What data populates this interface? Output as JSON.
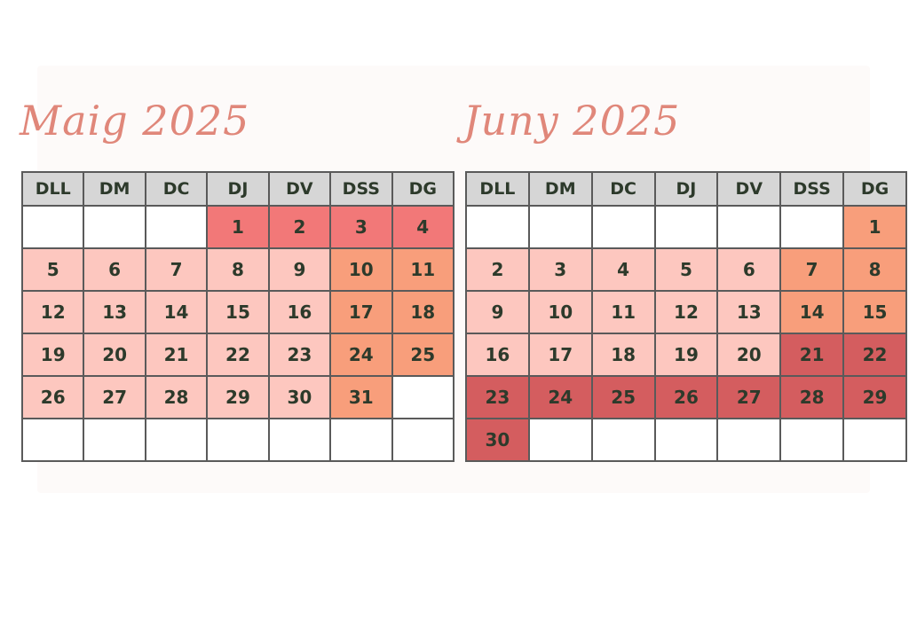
{
  "legend_colors": {
    "light": "#fdc7bf",
    "orange": "#f89e7b",
    "rose": "#f27878",
    "dark": "#d45d5f",
    "empty": "#ffffff",
    "header": "#d6d6d6",
    "title": "#e0877a"
  },
  "calendars": [
    {
      "title": "Maig 2025",
      "weekdays": [
        "DLL",
        "DM",
        "DC",
        "DJ",
        "DV",
        "DSS",
        "DG"
      ],
      "weeks": [
        [
          {
            "day": "",
            "color": "empty"
          },
          {
            "day": "",
            "color": "empty"
          },
          {
            "day": "",
            "color": "empty"
          },
          {
            "day": "1",
            "color": "rose"
          },
          {
            "day": "2",
            "color": "rose"
          },
          {
            "day": "3",
            "color": "rose"
          },
          {
            "day": "4",
            "color": "rose"
          }
        ],
        [
          {
            "day": "5",
            "color": "light"
          },
          {
            "day": "6",
            "color": "light"
          },
          {
            "day": "7",
            "color": "light"
          },
          {
            "day": "8",
            "color": "light"
          },
          {
            "day": "9",
            "color": "light"
          },
          {
            "day": "10",
            "color": "orange"
          },
          {
            "day": "11",
            "color": "orange"
          }
        ],
        [
          {
            "day": "12",
            "color": "light"
          },
          {
            "day": "13",
            "color": "light"
          },
          {
            "day": "14",
            "color": "light"
          },
          {
            "day": "15",
            "color": "light"
          },
          {
            "day": "16",
            "color": "light"
          },
          {
            "day": "17",
            "color": "orange"
          },
          {
            "day": "18",
            "color": "orange"
          }
        ],
        [
          {
            "day": "19",
            "color": "light"
          },
          {
            "day": "20",
            "color": "light"
          },
          {
            "day": "21",
            "color": "light"
          },
          {
            "day": "22",
            "color": "light"
          },
          {
            "day": "23",
            "color": "light"
          },
          {
            "day": "24",
            "color": "orange"
          },
          {
            "day": "25",
            "color": "orange"
          }
        ],
        [
          {
            "day": "26",
            "color": "light"
          },
          {
            "day": "27",
            "color": "light"
          },
          {
            "day": "28",
            "color": "light"
          },
          {
            "day": "29",
            "color": "light"
          },
          {
            "day": "30",
            "color": "light"
          },
          {
            "day": "31",
            "color": "orange"
          },
          {
            "day": "",
            "color": "empty"
          }
        ],
        [
          {
            "day": "",
            "color": "empty"
          },
          {
            "day": "",
            "color": "empty"
          },
          {
            "day": "",
            "color": "empty"
          },
          {
            "day": "",
            "color": "empty"
          },
          {
            "day": "",
            "color": "empty"
          },
          {
            "day": "",
            "color": "empty"
          },
          {
            "day": "",
            "color": "empty"
          }
        ]
      ]
    },
    {
      "title": "Juny 2025",
      "weekdays": [
        "DLL",
        "DM",
        "DC",
        "DJ",
        "DV",
        "DSS",
        "DG"
      ],
      "weeks": [
        [
          {
            "day": "",
            "color": "empty"
          },
          {
            "day": "",
            "color": "empty"
          },
          {
            "day": "",
            "color": "empty"
          },
          {
            "day": "",
            "color": "empty"
          },
          {
            "day": "",
            "color": "empty"
          },
          {
            "day": "",
            "color": "empty"
          },
          {
            "day": "1",
            "color": "orange"
          }
        ],
        [
          {
            "day": "2",
            "color": "light"
          },
          {
            "day": "3",
            "color": "light"
          },
          {
            "day": "4",
            "color": "light"
          },
          {
            "day": "5",
            "color": "light"
          },
          {
            "day": "6",
            "color": "light"
          },
          {
            "day": "7",
            "color": "orange"
          },
          {
            "day": "8",
            "color": "orange"
          }
        ],
        [
          {
            "day": "9",
            "color": "light"
          },
          {
            "day": "10",
            "color": "light"
          },
          {
            "day": "11",
            "color": "light"
          },
          {
            "day": "12",
            "color": "light"
          },
          {
            "day": "13",
            "color": "light"
          },
          {
            "day": "14",
            "color": "orange"
          },
          {
            "day": "15",
            "color": "orange"
          }
        ],
        [
          {
            "day": "16",
            "color": "light"
          },
          {
            "day": "17",
            "color": "light"
          },
          {
            "day": "18",
            "color": "light"
          },
          {
            "day": "19",
            "color": "light"
          },
          {
            "day": "20",
            "color": "light"
          },
          {
            "day": "21",
            "color": "dark"
          },
          {
            "day": "22",
            "color": "dark"
          }
        ],
        [
          {
            "day": "23",
            "color": "dark"
          },
          {
            "day": "24",
            "color": "dark"
          },
          {
            "day": "25",
            "color": "dark"
          },
          {
            "day": "26",
            "color": "dark"
          },
          {
            "day": "27",
            "color": "dark"
          },
          {
            "day": "28",
            "color": "dark"
          },
          {
            "day": "29",
            "color": "dark"
          }
        ],
        [
          {
            "day": "30",
            "color": "dark"
          },
          {
            "day": "",
            "color": "empty"
          },
          {
            "day": "",
            "color": "empty"
          },
          {
            "day": "",
            "color": "empty"
          },
          {
            "day": "",
            "color": "empty"
          },
          {
            "day": "",
            "color": "empty"
          },
          {
            "day": "",
            "color": "empty"
          }
        ]
      ]
    }
  ]
}
